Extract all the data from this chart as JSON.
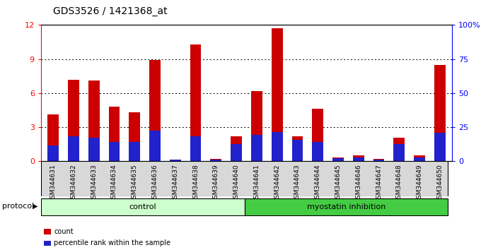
{
  "title": "GDS3526 / 1421368_at",
  "samples": [
    "GSM344631",
    "GSM344632",
    "GSM344633",
    "GSM344634",
    "GSM344635",
    "GSM344636",
    "GSM344637",
    "GSM344638",
    "GSM344639",
    "GSM344640",
    "GSM344641",
    "GSM344642",
    "GSM344643",
    "GSM344644",
    "GSM344645",
    "GSM344646",
    "GSM344647",
    "GSM344648",
    "GSM344649",
    "GSM344650"
  ],
  "count_values": [
    4.1,
    7.2,
    7.1,
    4.8,
    4.3,
    8.9,
    0.15,
    10.3,
    0.2,
    2.2,
    6.2,
    11.7,
    2.2,
    4.6,
    0.35,
    0.5,
    0.2,
    2.1,
    0.5,
    8.5
  ],
  "percentile_values": [
    1.4,
    2.2,
    2.1,
    1.7,
    1.7,
    2.7,
    0.12,
    2.2,
    0.15,
    1.5,
    2.3,
    2.6,
    1.9,
    1.7,
    0.28,
    0.35,
    0.15,
    1.5,
    0.35,
    2.5
  ],
  "control_count": 10,
  "myostatin_count": 10,
  "bar_color_red": "#cc0000",
  "bar_color_blue": "#2222cc",
  "control_color": "#ccffcc",
  "myostatin_color": "#44cc44",
  "ylim_left": [
    0,
    12
  ],
  "ylim_right": [
    0,
    100
  ],
  "yticks_left": [
    0,
    3,
    6,
    9,
    12
  ],
  "yticks_right": [
    0,
    25,
    50,
    75,
    100
  ],
  "ytick_right_labels": [
    "0",
    "25",
    "50",
    "75",
    "100%"
  ],
  "bar_width": 0.55,
  "title_fontsize": 10,
  "tick_fontsize": 6.5,
  "label_fontsize": 8,
  "grid_color": "#555555",
  "xtick_bg": "#d0d0d0"
}
